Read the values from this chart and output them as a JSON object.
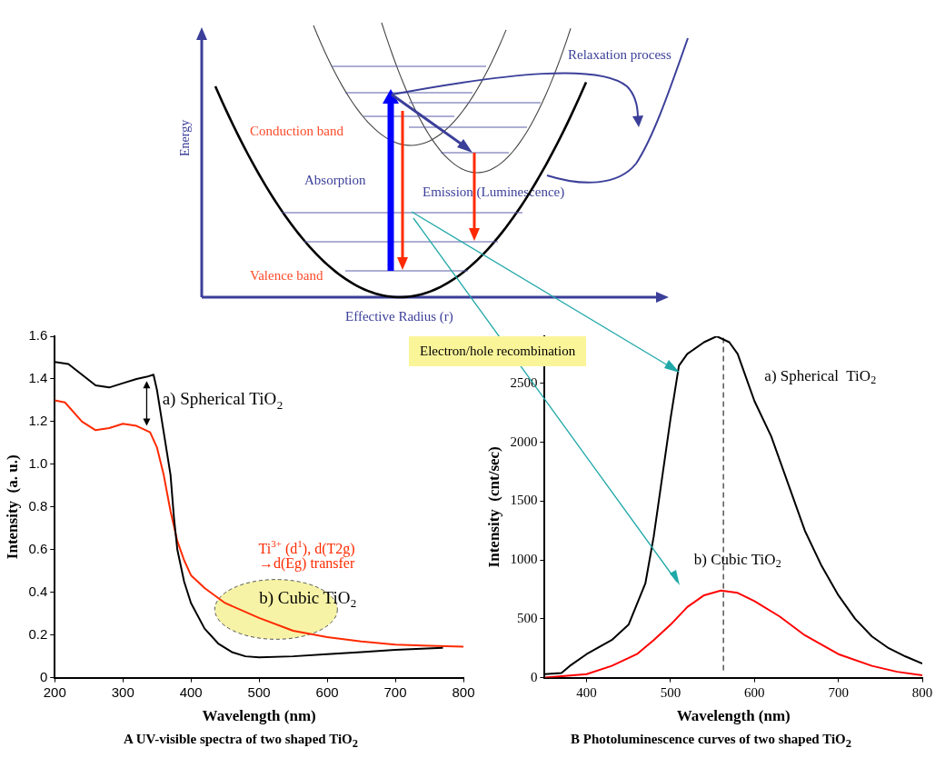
{
  "chart_data": [
    {
      "type": "other",
      "xlabel": "Effective Radius (r)",
      "ylabel": "Energy",
      "annotations": [
        "Relaxation process",
        "Conduction band",
        "Absorption",
        "Emission (Luminescence)",
        "Valence band",
        "Electron/hole recombination"
      ]
    },
    {
      "type": "line",
      "title": "A  UV-visible spectra of two shaped TiO$_{2}$",
      "xlabel": "Wavelength (nm)",
      "ylabel": "Intensity  (a. u.)",
      "xlim": [
        200,
        800
      ],
      "xticks": [
        200,
        300,
        400,
        500,
        600,
        700,
        800
      ],
      "ylim": [
        0,
        1.6
      ],
      "yticks": [
        0,
        0.2,
        0.4,
        0.6,
        0.8,
        {
          "value": 1,
          "label": "1.0"
        },
        1.2,
        1.4,
        1.6
      ],
      "grid": false,
      "line_style": "solid",
      "marker": "none",
      "annotations": [
        "Ti$^{3+}$ (d$^{1}$), d(T2g)",
        "→d(Eg) transfer"
      ],
      "series": [
        {
          "name": "a) Spherical TiO$_{2}$",
          "color": "#000000",
          "x": [
            200,
            220,
            240,
            260,
            280,
            300,
            320,
            335,
            345,
            350,
            360,
            370,
            375,
            380,
            390,
            400,
            420,
            440,
            460,
            480,
            500,
            550,
            600,
            650,
            700,
            770
          ],
          "values": [
            1.48,
            1.47,
            1.42,
            1.37,
            1.36,
            1.38,
            1.4,
            1.41,
            1.42,
            1.35,
            1.15,
            0.95,
            0.75,
            0.6,
            0.45,
            0.35,
            0.23,
            0.16,
            0.12,
            0.1,
            0.095,
            0.1,
            0.11,
            0.12,
            0.13,
            0.14
          ]
        },
        {
          "name": "b) Cubic TiO$_{2}$",
          "color": "#ff2a00",
          "x": [
            200,
            215,
            240,
            260,
            280,
            300,
            320,
            340,
            350,
            360,
            370,
            380,
            390,
            400,
            420,
            450,
            500,
            550,
            600,
            650,
            700,
            750,
            800
          ],
          "values": [
            1.3,
            1.29,
            1.2,
            1.16,
            1.17,
            1.19,
            1.18,
            1.15,
            1.08,
            0.95,
            0.78,
            0.64,
            0.55,
            0.48,
            0.42,
            0.35,
            0.28,
            0.22,
            0.19,
            0.17,
            0.155,
            0.15,
            0.145
          ]
        }
      ]
    },
    {
      "type": "line",
      "title": "B  Photoluminescence curves of two shaped TiO$_{2}$",
      "xlabel": "Wavelength (nm)",
      "ylabel": "Intensity  (cnt/sec)",
      "xlim": [
        350,
        800
      ],
      "xticks": [
        400,
        500,
        600,
        700,
        800
      ],
      "ylim": [
        0,
        2900
      ],
      "yticks": [
        0,
        500,
        1000,
        1500,
        2000,
        2500
      ],
      "grid": false,
      "line_style": "solid",
      "marker": "none",
      "ref_lines": [
        {
          "axis": "x",
          "value": 563,
          "line_style": "dashed",
          "color": "#000000"
        }
      ],
      "series": [
        {
          "name": "a) Spherical  TiO$_{2}$",
          "color": "#000000",
          "x": [
            350,
            370,
            380,
            400,
            430,
            450,
            470,
            480,
            490,
            500,
            510,
            520,
            540,
            555,
            570,
            580,
            590,
            600,
            620,
            640,
            660,
            680,
            700,
            720,
            740,
            760,
            780,
            800
          ],
          "values": [
            30,
            40,
            100,
            200,
            320,
            450,
            800,
            1200,
            1700,
            2200,
            2650,
            2750,
            2850,
            2900,
            2850,
            2750,
            2550,
            2350,
            2050,
            1650,
            1250,
            950,
            700,
            500,
            350,
            250,
            180,
            120
          ]
        },
        {
          "name": "b) Cubic TiO$_{2}$",
          "color": "#ff0000",
          "x": [
            350,
            400,
            430,
            460,
            480,
            500,
            520,
            540,
            560,
            580,
            600,
            630,
            660,
            700,
            740,
            770,
            800
          ],
          "values": [
            0,
            30,
            100,
            200,
            320,
            450,
            600,
            700,
            740,
            720,
            650,
            520,
            360,
            200,
            100,
            50,
            20
          ]
        }
      ]
    }
  ]
}
